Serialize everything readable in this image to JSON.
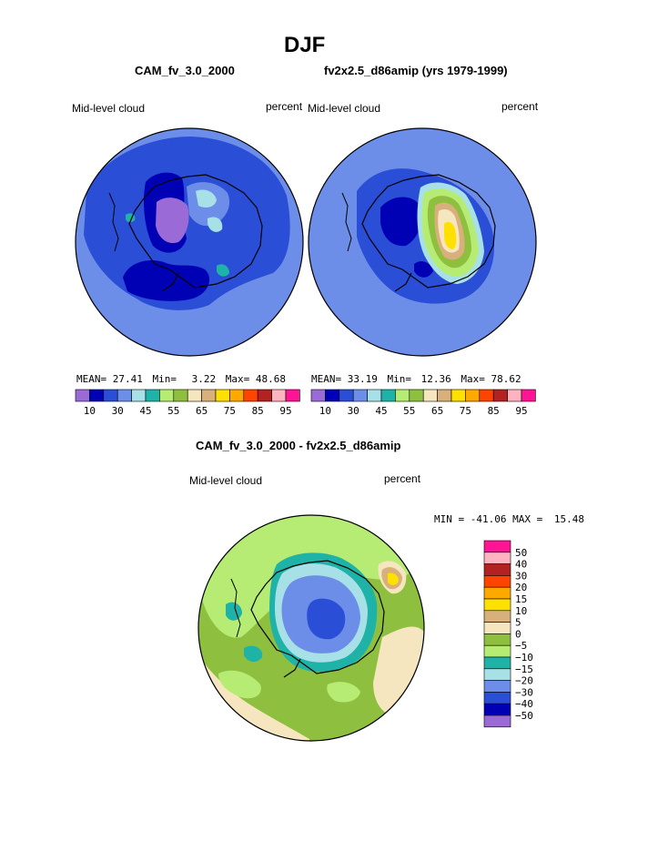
{
  "title": "DJF",
  "panel_titles": {
    "left": "CAM_fv_3.0_2000",
    "right": "fv2x2.5_d86amip (yrs 1979-1999)",
    "diff": "CAM_fv_3.0_2000 - fv2x2.5_d86amip"
  },
  "chart_data": [
    {
      "type": "heatmap",
      "projection": "polar stereographic (south pole)",
      "variable": "Mid-level cloud",
      "units": "percent",
      "case": "CAM_fv_3.0_2000",
      "stats": {
        "mean_label": "MEAN=",
        "mean": "27.41",
        "min_label": "Min=",
        "min": "3.22",
        "max_label": "Max=",
        "max": "48.68"
      },
      "contour_levels": [
        10,
        15,
        20,
        25,
        30,
        35,
        40,
        45,
        50,
        55,
        60,
        65,
        70,
        75,
        80,
        85,
        90,
        95
      ],
      "colorbar_tick_labels": [
        "10",
        "30",
        "45",
        "55",
        "65",
        "75",
        "85",
        "95"
      ],
      "colors": [
        "#9a6ad6",
        "#0000b4",
        "#2a4fd6",
        "#6c8ee8",
        "#a8e0e8",
        "#1fb3a8",
        "#b7ec74",
        "#8fbf3f",
        "#f5e6c0",
        "#d8b07c",
        "#ffe000",
        "#ffa800",
        "#ff4400",
        "#b22222",
        "#ffb3c0",
        "#ff1493"
      ]
    },
    {
      "type": "heatmap",
      "projection": "polar stereographic (south pole)",
      "variable": "Mid-level cloud",
      "units": "percent",
      "case": "fv2x2.5_d86amip (yrs 1979-1999)",
      "stats": {
        "mean_label": "MEAN=",
        "mean": "33.19",
        "min_label": "Min=",
        "min": "12.36",
        "max_label": "Max=",
        "max": "78.62"
      },
      "contour_levels": [
        10,
        15,
        20,
        25,
        30,
        35,
        40,
        45,
        50,
        55,
        60,
        65,
        70,
        75,
        80,
        85,
        90,
        95
      ],
      "colorbar_tick_labels": [
        "10",
        "30",
        "45",
        "55",
        "65",
        "75",
        "85",
        "95"
      ],
      "colors": [
        "#9a6ad6",
        "#0000b4",
        "#2a4fd6",
        "#6c8ee8",
        "#a8e0e8",
        "#1fb3a8",
        "#b7ec74",
        "#8fbf3f",
        "#f5e6c0",
        "#d8b07c",
        "#ffe000",
        "#ffa800",
        "#ff4400",
        "#b22222",
        "#ffb3c0",
        "#ff1493"
      ]
    },
    {
      "type": "heatmap",
      "projection": "polar stereographic (south pole)",
      "variable": "Mid-level cloud",
      "units": "percent",
      "case": "CAM_fv_3.0_2000 - fv2x2.5_d86amip",
      "stats": {
        "min_label": "MIN =",
        "min": "-41.06",
        "max_label": "MAX =",
        "max": "15.48"
      },
      "contour_levels": [
        -50,
        -40,
        -30,
        -20,
        -15,
        -10,
        -5,
        0,
        5,
        10,
        15,
        20,
        30,
        40,
        50
      ],
      "colorbar_tick_labels": [
        "50",
        "40",
        "30",
        "20",
        "15",
        "10",
        "5",
        "0",
        "−5",
        "−10",
        "−15",
        "−20",
        "−30",
        "−40",
        "−50"
      ],
      "colors": [
        "#ff1493",
        "#ffb3c0",
        "#b22222",
        "#ff4400",
        "#ffa800",
        "#ffe000",
        "#d8b07c",
        "#f5e6c0",
        "#8fbf3f",
        "#b7ec74",
        "#1fb3a8",
        "#a8e0e8",
        "#6c8ee8",
        "#2a4fd6",
        "#0000b4",
        "#9a6ad6"
      ]
    }
  ]
}
